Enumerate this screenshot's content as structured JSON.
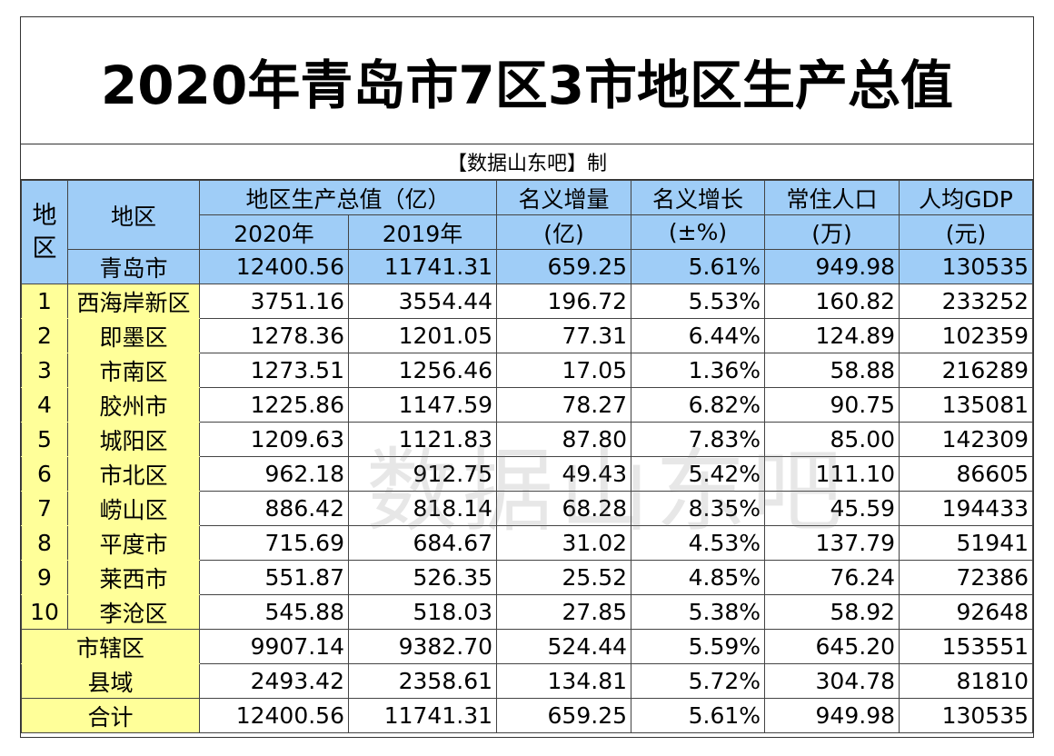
{
  "title": "2020年青岛市7区3市地区生产总值",
  "subtitle": "【数据山东吧】制",
  "watermark": "数据山东吧",
  "headers": {
    "idx": "地区",
    "name": "地区",
    "gdp": "地区生产总值（亿）",
    "y2020": "2020年",
    "y2019": "2019年",
    "inc1": "名义增量",
    "inc2": "(亿)",
    "gr1": "名义增长",
    "gr2": "(±%)",
    "pop1": "常住人口",
    "pop2": "(万)",
    "pc1": "人均GDP",
    "pc2": "(元)"
  },
  "total_top": [
    "青岛市",
    "12400.56",
    "11741.31",
    "659.25",
    "5.61%",
    "949.98",
    "130535"
  ],
  "rows": [
    [
      "1",
      "西海岸新区",
      "3751.16",
      "3554.44",
      "196.72",
      "5.53%",
      "160.82",
      "233252"
    ],
    [
      "2",
      "即墨区",
      "1278.36",
      "1201.05",
      "77.31",
      "6.44%",
      "124.89",
      "102359"
    ],
    [
      "3",
      "市南区",
      "1273.51",
      "1256.46",
      "17.05",
      "1.36%",
      "58.88",
      "216289"
    ],
    [
      "4",
      "胶州市",
      "1225.86",
      "1147.59",
      "78.27",
      "6.82%",
      "90.75",
      "135081"
    ],
    [
      "5",
      "城阳区",
      "1209.63",
      "1121.83",
      "87.80",
      "7.83%",
      "85.00",
      "142309"
    ],
    [
      "6",
      "市北区",
      "962.18",
      "912.75",
      "49.43",
      "5.42%",
      "111.10",
      "86605"
    ],
    [
      "7",
      "崂山区",
      "886.42",
      "818.14",
      "68.28",
      "8.35%",
      "45.59",
      "194433"
    ],
    [
      "8",
      "平度市",
      "715.69",
      "684.67",
      "31.02",
      "4.53%",
      "137.79",
      "51941"
    ],
    [
      "9",
      "莱西市",
      "551.87",
      "526.35",
      "25.52",
      "4.85%",
      "76.24",
      "72386"
    ],
    [
      "10",
      "李沧区",
      "545.88",
      "518.03",
      "27.85",
      "5.38%",
      "58.92",
      "92648"
    ]
  ],
  "summary": [
    [
      "市辖区",
      "9907.14",
      "9382.70",
      "524.44",
      "5.59%",
      "645.20",
      "153551"
    ],
    [
      "县域",
      "2493.42",
      "2358.61",
      "134.81",
      "5.72%",
      "304.78",
      "81810"
    ],
    [
      "合计",
      "12400.56",
      "11741.31",
      "659.25",
      "5.61%",
      "949.98",
      "130535"
    ]
  ]
}
